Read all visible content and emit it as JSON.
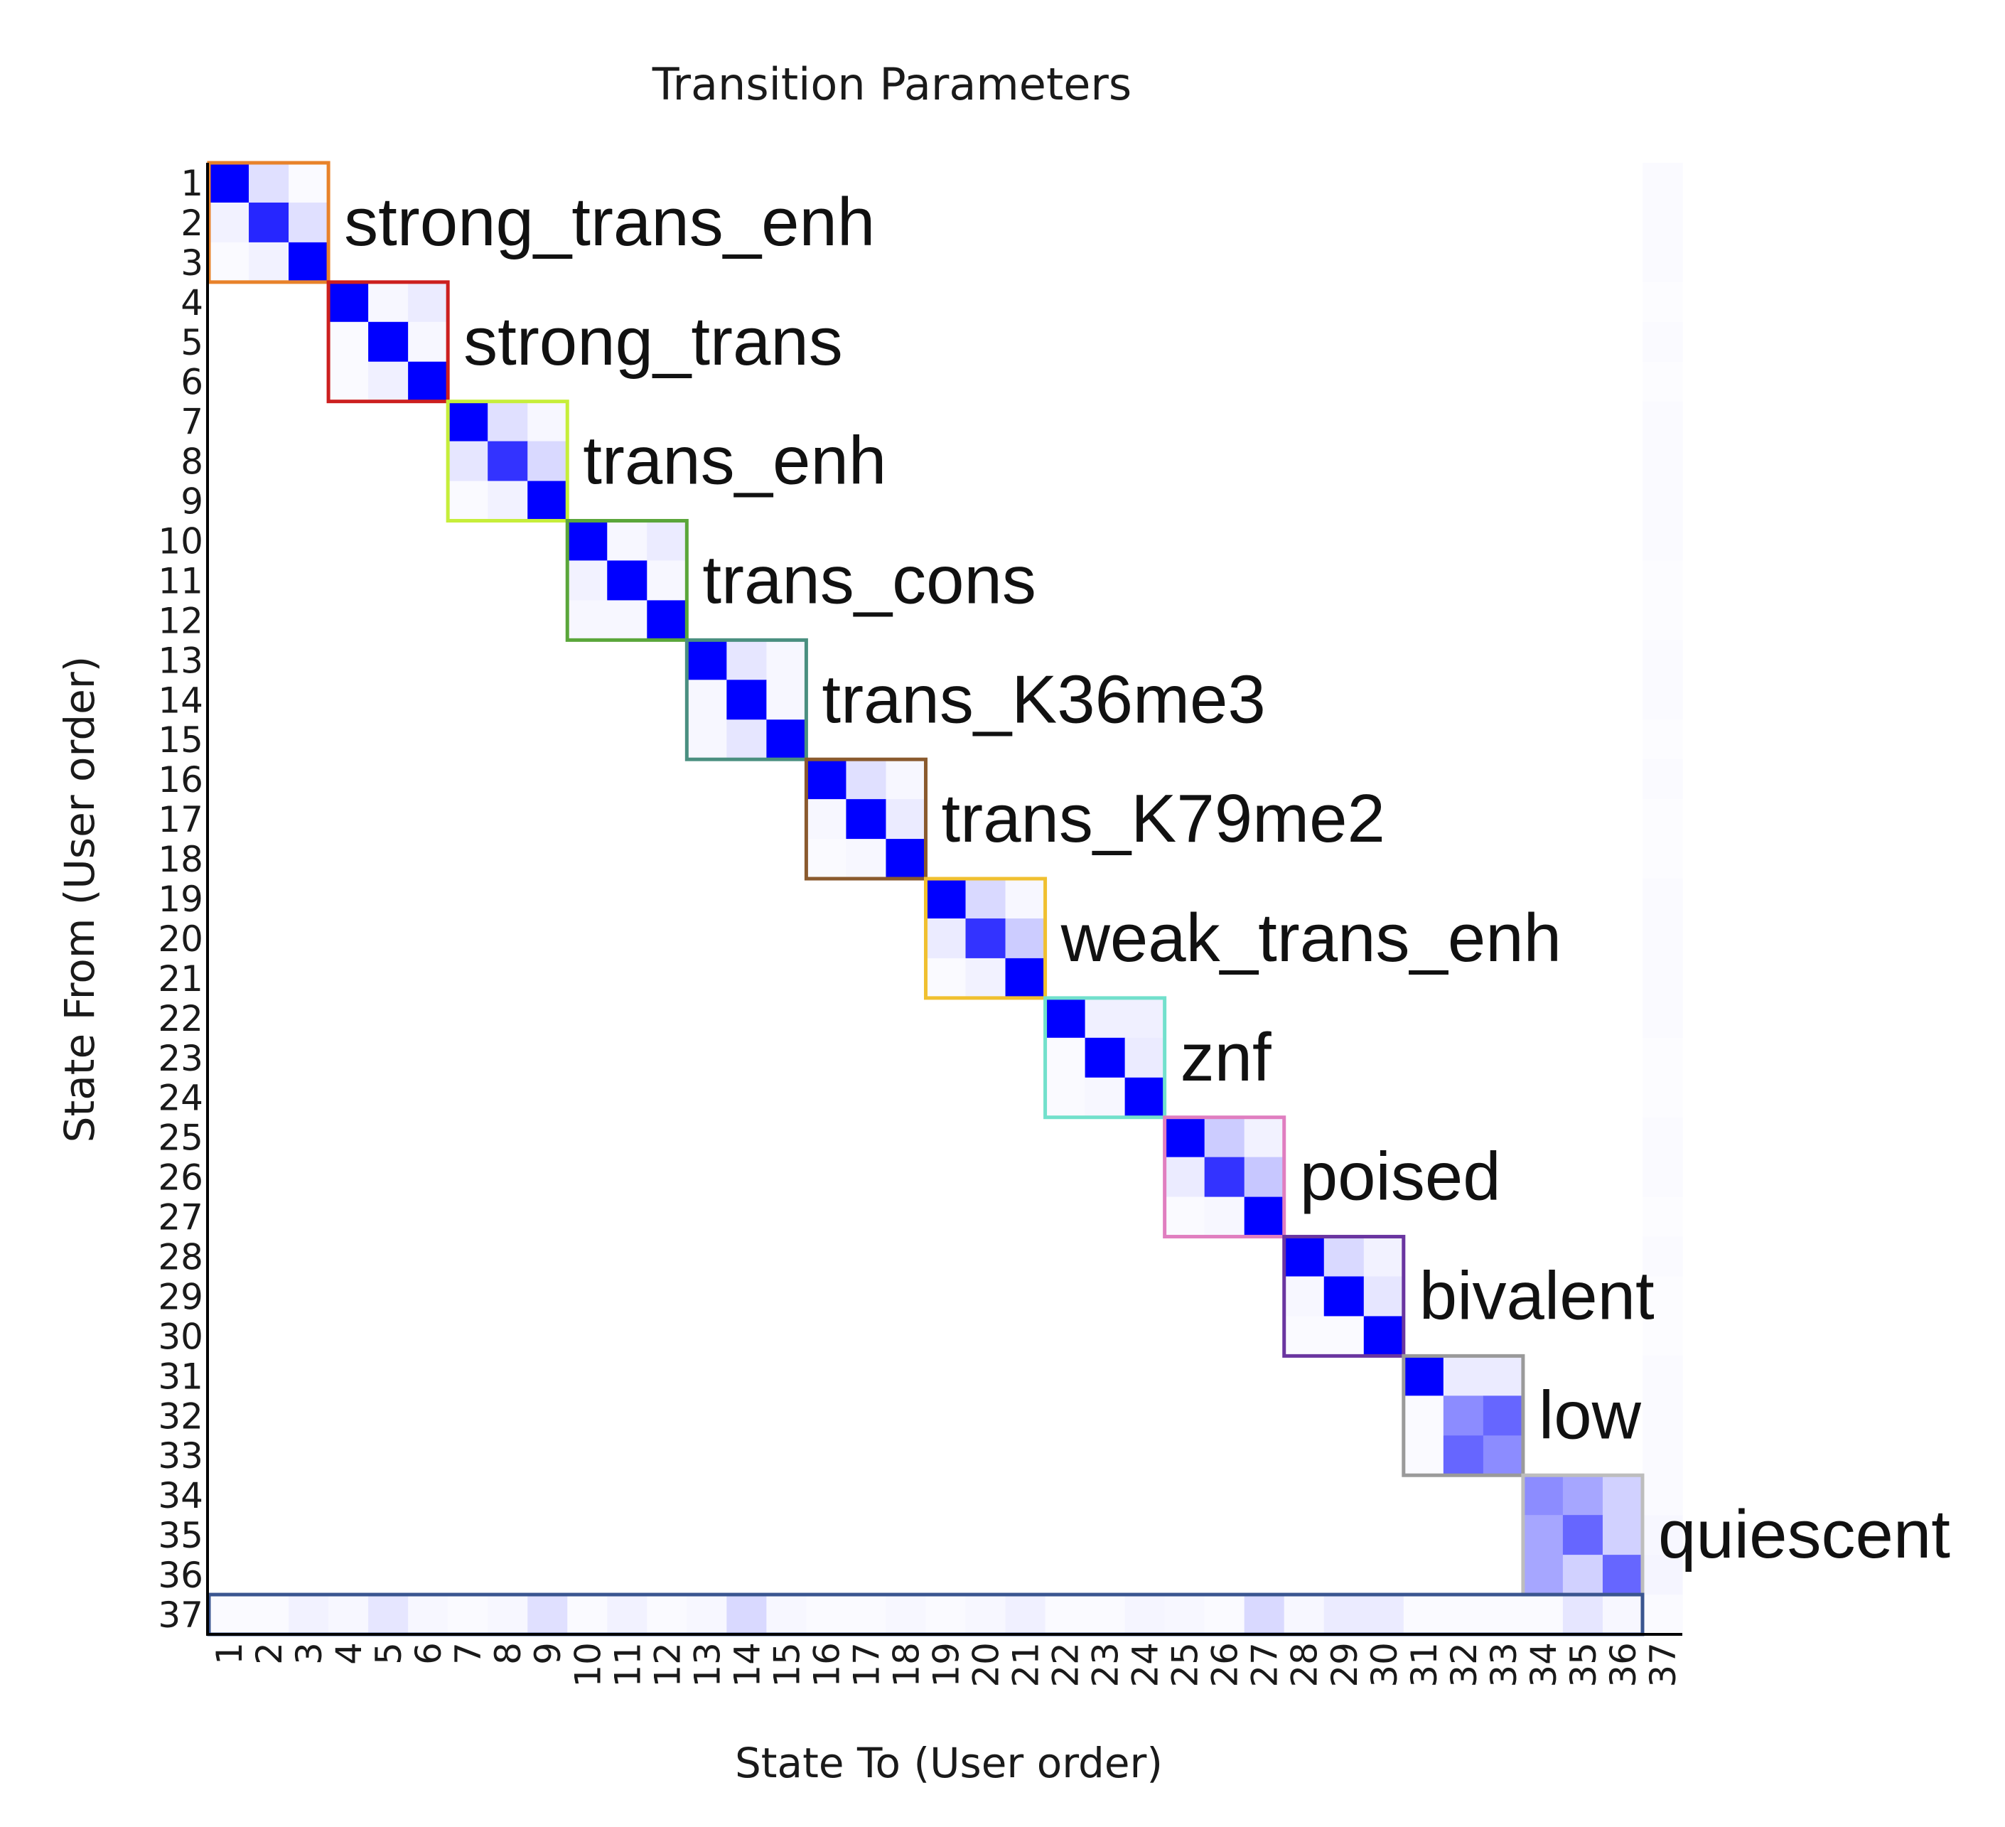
{
  "chart_data": {
    "type": "heatmap",
    "title": "Transition Parameters",
    "xlabel": "State To (User order)",
    "ylabel": "State From (User order)",
    "n_states": 37,
    "tick_labels": [
      "1",
      "2",
      "3",
      "4",
      "5",
      "6",
      "7",
      "8",
      "9",
      "10",
      "11",
      "12",
      "13",
      "14",
      "15",
      "16",
      "17",
      "18",
      "19",
      "20",
      "21",
      "22",
      "23",
      "24",
      "25",
      "26",
      "27",
      "28",
      "29",
      "30",
      "31",
      "32",
      "33",
      "34",
      "35",
      "36",
      "37"
    ],
    "color_scale": {
      "low": "#ffffff",
      "high": "#0000ff"
    },
    "groups": [
      {
        "name": "strong_trans_enh",
        "from_state": 1,
        "to_state": 3,
        "color": "#e8822a",
        "block": [
          [
            1.0,
            0.12,
            0.02
          ],
          [
            0.05,
            0.85,
            0.12
          ],
          [
            0.02,
            0.05,
            1.0
          ]
        ]
      },
      {
        "name": "strong_trans",
        "from_state": 4,
        "to_state": 6,
        "color": "#cc1f1f",
        "block": [
          [
            1.0,
            0.03,
            0.08
          ],
          [
            0.02,
            1.0,
            0.03
          ],
          [
            0.02,
            0.06,
            1.0
          ]
        ]
      },
      {
        "name": "trans_enh",
        "from_state": 7,
        "to_state": 9,
        "color": "#c6ee3a",
        "block": [
          [
            1.0,
            0.12,
            0.03
          ],
          [
            0.1,
            0.8,
            0.15
          ],
          [
            0.02,
            0.05,
            1.0
          ]
        ]
      },
      {
        "name": "trans_cons",
        "from_state": 10,
        "to_state": 12,
        "color": "#5aa63a",
        "block": [
          [
            1.0,
            0.03,
            0.08
          ],
          [
            0.05,
            1.0,
            0.03
          ],
          [
            0.03,
            0.03,
            1.0
          ]
        ]
      },
      {
        "name": "trans_K36me3",
        "from_state": 13,
        "to_state": 15,
        "color": "#4a8f80",
        "block": [
          [
            1.0,
            0.1,
            0.03
          ],
          [
            0.03,
            1.0,
            0.03
          ],
          [
            0.03,
            0.1,
            1.0
          ]
        ]
      },
      {
        "name": "trans_K79me2",
        "from_state": 16,
        "to_state": 18,
        "color": "#8a5a2e",
        "block": [
          [
            1.0,
            0.12,
            0.03
          ],
          [
            0.03,
            1.0,
            0.08
          ],
          [
            0.02,
            0.03,
            1.0
          ]
        ]
      },
      {
        "name": "weak_trans_enh",
        "from_state": 19,
        "to_state": 21,
        "color": "#f0c030",
        "block": [
          [
            1.0,
            0.15,
            0.03
          ],
          [
            0.08,
            0.8,
            0.2
          ],
          [
            0.02,
            0.05,
            1.0
          ]
        ]
      },
      {
        "name": "znf",
        "from_state": 22,
        "to_state": 24,
        "color": "#72e0cc",
        "block": [
          [
            1.0,
            0.06,
            0.06
          ],
          [
            0.02,
            1.0,
            0.08
          ],
          [
            0.02,
            0.03,
            1.0
          ]
        ]
      },
      {
        "name": "poised",
        "from_state": 25,
        "to_state": 27,
        "color": "#e07ec0",
        "block": [
          [
            1.0,
            0.2,
            0.05
          ],
          [
            0.08,
            0.8,
            0.22
          ],
          [
            0.02,
            0.03,
            1.0
          ]
        ]
      },
      {
        "name": "bivalent",
        "from_state": 28,
        "to_state": 30,
        "color": "#6a35a0",
        "block": [
          [
            1.0,
            0.15,
            0.05
          ],
          [
            0.03,
            1.0,
            0.1
          ],
          [
            0.02,
            0.02,
            1.0
          ]
        ]
      },
      {
        "name": "low",
        "from_state": 31,
        "to_state": 33,
        "color": "#9a9a9a",
        "block": [
          [
            1.0,
            0.08,
            0.08
          ],
          [
            0.02,
            0.45,
            0.6
          ],
          [
            0.02,
            0.6,
            0.45
          ]
        ]
      },
      {
        "name": "quiescent",
        "from_state": 34,
        "to_state": 36,
        "color": "#bdbdbd",
        "block": [
          [
            0.45,
            0.35,
            0.18
          ],
          [
            0.35,
            0.6,
            0.18
          ],
          [
            0.35,
            0.18,
            0.6
          ]
        ]
      }
    ],
    "last_row": {
      "state": 37,
      "color": "#3a5590",
      "values": [
        0.02,
        0.02,
        0.05,
        0.03,
        0.1,
        0.03,
        0.02,
        0.03,
        0.12,
        0.02,
        0.05,
        0.02,
        0.03,
        0.15,
        0.03,
        0.02,
        0.02,
        0.03,
        0.02,
        0.03,
        0.06,
        0.02,
        0.02,
        0.04,
        0.03,
        0.02,
        0.15,
        0.03,
        0.08,
        0.08,
        0.02,
        0.02,
        0.02,
        0.02,
        0.1,
        0.03,
        0.02
      ]
    },
    "last_column": {
      "state": 37,
      "values": [
        0.02,
        0.02,
        0.02,
        0.01,
        0.02,
        0.01,
        0.02,
        0.02,
        0.02,
        0.02,
        0.01,
        0.01,
        0.02,
        0.02,
        0.01,
        0.02,
        0.01,
        0.01,
        0.02,
        0.02,
        0.02,
        0.02,
        0.01,
        0.01,
        0.02,
        0.02,
        0.01,
        0.02,
        0.01,
        0.01,
        0.02,
        0.02,
        0.02,
        0.02,
        0.03,
        0.04
      ]
    }
  }
}
